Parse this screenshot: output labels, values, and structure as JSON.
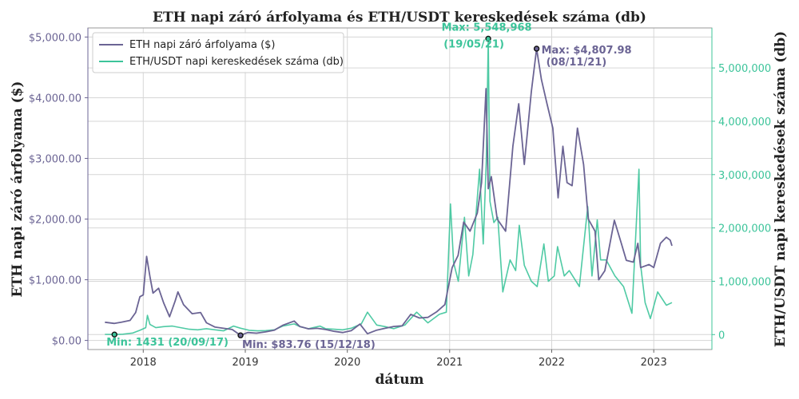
{
  "chart_data": {
    "type": "line",
    "title": "ETH napi záró árfolyama és ETH/USDT kereskedések száma (db)",
    "xlabel": "dátum",
    "ylabel_left": "ETH napi záró árfolyama ($)",
    "ylabel_right": "ETH/USDT napi kereskedések száma (db)",
    "colors": {
      "eth": "#6b6494",
      "trades": "#3cc49a"
    },
    "ylim_left": [
      -150,
      5150
    ],
    "ylim_right": [
      -280000,
      5750000
    ],
    "xlim": [
      "2017-06-17",
      "2023-07-28"
    ],
    "left_ticks": [
      {
        "value": 0,
        "label": "$0.00"
      },
      {
        "value": 1000,
        "label": "$1,000.00"
      },
      {
        "value": 2000,
        "label": "$2,000.00"
      },
      {
        "value": 3000,
        "label": "$3,000.00"
      },
      {
        "value": 4000,
        "label": "$4,000.00"
      },
      {
        "value": 5000,
        "label": "$5,000.00"
      }
    ],
    "right_ticks": [
      {
        "value": 0,
        "label": "0"
      },
      {
        "value": 1000000,
        "label": "1,000,000"
      },
      {
        "value": 2000000,
        "label": "2,000,000"
      },
      {
        "value": 3000000,
        "label": "3,000,000"
      },
      {
        "value": 4000000,
        "label": "4,000,000"
      },
      {
        "value": 5000000,
        "label": "5,000,000"
      }
    ],
    "x_ticks": [
      {
        "date": "2018-01-01",
        "label": "2018"
      },
      {
        "date": "2019-01-01",
        "label": "2019"
      },
      {
        "date": "2020-01-01",
        "label": "2020"
      },
      {
        "date": "2021-01-01",
        "label": "2021"
      },
      {
        "date": "2022-01-01",
        "label": "2022"
      },
      {
        "date": "2023-01-01",
        "label": "2023"
      }
    ],
    "legend_position": "top-left",
    "grid": true,
    "series": [
      {
        "key": "eth",
        "name": "ETH napi záró árfolyama ($)",
        "axis": "left",
        "points": [
          [
            "2017-08-17",
            300
          ],
          [
            "2017-09-20",
            280
          ],
          [
            "2017-10-15",
            300
          ],
          [
            "2017-11-15",
            330
          ],
          [
            "2017-12-05",
            460
          ],
          [
            "2017-12-20",
            720
          ],
          [
            "2018-01-01",
            750
          ],
          [
            "2018-01-13",
            1385
          ],
          [
            "2018-01-25",
            1050
          ],
          [
            "2018-02-05",
            780
          ],
          [
            "2018-02-25",
            860
          ],
          [
            "2018-03-15",
            620
          ],
          [
            "2018-04-05",
            390
          ],
          [
            "2018-04-25",
            650
          ],
          [
            "2018-05-05",
            800
          ],
          [
            "2018-05-25",
            590
          ],
          [
            "2018-06-25",
            440
          ],
          [
            "2018-07-25",
            460
          ],
          [
            "2018-08-15",
            290
          ],
          [
            "2018-09-15",
            220
          ],
          [
            "2018-10-15",
            200
          ],
          [
            "2018-11-15",
            180
          ],
          [
            "2018-12-15",
            83.76
          ],
          [
            "2019-01-10",
            130
          ],
          [
            "2019-02-10",
            120
          ],
          [
            "2019-03-15",
            140
          ],
          [
            "2019-04-15",
            170
          ],
          [
            "2019-05-15",
            250
          ],
          [
            "2019-06-25",
            320
          ],
          [
            "2019-07-15",
            230
          ],
          [
            "2019-08-15",
            190
          ],
          [
            "2019-09-15",
            200
          ],
          [
            "2019-10-15",
            180
          ],
          [
            "2019-11-15",
            150
          ],
          [
            "2019-12-15",
            130
          ],
          [
            "2020-01-15",
            160
          ],
          [
            "2020-02-15",
            270
          ],
          [
            "2020-03-13",
            110
          ],
          [
            "2020-04-15",
            170
          ],
          [
            "2020-05-15",
            200
          ],
          [
            "2020-06-15",
            230
          ],
          [
            "2020-07-15",
            240
          ],
          [
            "2020-08-15",
            430
          ],
          [
            "2020-09-15",
            370
          ],
          [
            "2020-10-15",
            380
          ],
          [
            "2020-11-15",
            470
          ],
          [
            "2020-12-15",
            590
          ],
          [
            "2021-01-10",
            1200
          ],
          [
            "2021-01-31",
            1400
          ],
          [
            "2021-02-20",
            1950
          ],
          [
            "2021-03-15",
            1800
          ],
          [
            "2021-04-10",
            2100
          ],
          [
            "2021-04-25",
            2600
          ],
          [
            "2021-05-11",
            4150
          ],
          [
            "2021-05-19",
            2500
          ],
          [
            "2021-05-30",
            2700
          ],
          [
            "2021-06-20",
            2000
          ],
          [
            "2021-07-20",
            1800
          ],
          [
            "2021-08-15",
            3200
          ],
          [
            "2021-09-05",
            3900
          ],
          [
            "2021-09-25",
            2900
          ],
          [
            "2021-10-20",
            4100
          ],
          [
            "2021-11-08",
            4807.98
          ],
          [
            "2021-11-25",
            4300
          ],
          [
            "2021-12-15",
            3900
          ],
          [
            "2022-01-05",
            3500
          ],
          [
            "2022-01-24",
            2350
          ],
          [
            "2022-02-10",
            3200
          ],
          [
            "2022-02-25",
            2600
          ],
          [
            "2022-03-15",
            2550
          ],
          [
            "2022-04-03",
            3500
          ],
          [
            "2022-04-25",
            2900
          ],
          [
            "2022-05-12",
            2000
          ],
          [
            "2022-06-05",
            1800
          ],
          [
            "2022-06-18",
            1000
          ],
          [
            "2022-07-10",
            1150
          ],
          [
            "2022-08-13",
            1980
          ],
          [
            "2022-09-07",
            1600
          ],
          [
            "2022-09-25",
            1320
          ],
          [
            "2022-10-20",
            1290
          ],
          [
            "2022-11-05",
            1600
          ],
          [
            "2022-11-15",
            1200
          ],
          [
            "2022-12-15",
            1250
          ],
          [
            "2023-01-01",
            1200
          ],
          [
            "2023-01-25",
            1600
          ],
          [
            "2023-02-15",
            1700
          ],
          [
            "2023-03-01",
            1650
          ],
          [
            "2023-03-07",
            1560
          ]
        ]
      },
      {
        "key": "trades",
        "name": "ETH/USDT napi kereskedések száma (db)",
        "axis": "right",
        "points": [
          [
            "2017-08-17",
            5000
          ],
          [
            "2017-09-20",
            1431
          ],
          [
            "2017-10-20",
            8000
          ],
          [
            "2017-11-25",
            30000
          ],
          [
            "2017-12-20",
            80000
          ],
          [
            "2018-01-10",
            130000
          ],
          [
            "2018-01-16",
            360000
          ],
          [
            "2018-01-25",
            190000
          ],
          [
            "2018-02-15",
            130000
          ],
          [
            "2018-03-15",
            150000
          ],
          [
            "2018-04-15",
            160000
          ],
          [
            "2018-05-15",
            130000
          ],
          [
            "2018-06-15",
            100000
          ],
          [
            "2018-07-15",
            90000
          ],
          [
            "2018-08-15",
            110000
          ],
          [
            "2018-09-15",
            90000
          ],
          [
            "2018-10-15",
            70000
          ],
          [
            "2018-11-20",
            160000
          ],
          [
            "2018-12-15",
            120000
          ],
          [
            "2019-01-15",
            80000
          ],
          [
            "2019-02-15",
            70000
          ],
          [
            "2019-03-15",
            75000
          ],
          [
            "2019-04-15",
            90000
          ],
          [
            "2019-05-15",
            160000
          ],
          [
            "2019-06-25",
            200000
          ],
          [
            "2019-07-15",
            150000
          ],
          [
            "2019-08-15",
            110000
          ],
          [
            "2019-09-25",
            160000
          ],
          [
            "2019-10-15",
            110000
          ],
          [
            "2019-11-15",
            100000
          ],
          [
            "2019-12-15",
            90000
          ],
          [
            "2020-01-15",
            120000
          ],
          [
            "2020-02-20",
            200000
          ],
          [
            "2020-03-13",
            420000
          ],
          [
            "2020-04-15",
            180000
          ],
          [
            "2020-05-15",
            150000
          ],
          [
            "2020-06-15",
            110000
          ],
          [
            "2020-07-25",
            180000
          ],
          [
            "2020-08-15",
            300000
          ],
          [
            "2020-09-05",
            420000
          ],
          [
            "2020-10-15",
            220000
          ],
          [
            "2020-11-25",
            380000
          ],
          [
            "2020-12-20",
            420000
          ],
          [
            "2021-01-04",
            2450000
          ],
          [
            "2021-01-15",
            1350000
          ],
          [
            "2021-02-01",
            1000000
          ],
          [
            "2021-02-23",
            2200000
          ],
          [
            "2021-03-10",
            1100000
          ],
          [
            "2021-03-25",
            1500000
          ],
          [
            "2021-04-18",
            3100000
          ],
          [
            "2021-05-01",
            1700000
          ],
          [
            "2021-05-12",
            3250000
          ],
          [
            "2021-05-19",
            5548968
          ],
          [
            "2021-05-25",
            2500000
          ],
          [
            "2021-06-08",
            2100000
          ],
          [
            "2021-06-22",
            2200000
          ],
          [
            "2021-07-10",
            800000
          ],
          [
            "2021-08-05",
            1400000
          ],
          [
            "2021-08-25",
            1200000
          ],
          [
            "2021-09-07",
            2050000
          ],
          [
            "2021-09-25",
            1300000
          ],
          [
            "2021-10-20",
            1000000
          ],
          [
            "2021-11-10",
            900000
          ],
          [
            "2021-12-04",
            1700000
          ],
          [
            "2021-12-20",
            1000000
          ],
          [
            "2022-01-10",
            1100000
          ],
          [
            "2022-01-22",
            1650000
          ],
          [
            "2022-02-15",
            1100000
          ],
          [
            "2022-03-05",
            1200000
          ],
          [
            "2022-04-10",
            900000
          ],
          [
            "2022-05-10",
            2400000
          ],
          [
            "2022-05-25",
            1100000
          ],
          [
            "2022-06-13",
            2150000
          ],
          [
            "2022-06-25",
            1400000
          ],
          [
            "2022-07-15",
            1400000
          ],
          [
            "2022-08-15",
            1100000
          ],
          [
            "2022-09-15",
            900000
          ],
          [
            "2022-10-15",
            400000
          ],
          [
            "2022-11-09",
            3100000
          ],
          [
            "2022-11-15",
            1300000
          ],
          [
            "2022-12-01",
            600000
          ],
          [
            "2022-12-20",
            300000
          ],
          [
            "2023-01-15",
            800000
          ],
          [
            "2023-02-15",
            550000
          ],
          [
            "2023-03-07",
            600000
          ]
        ]
      }
    ],
    "annotations": [
      {
        "series": "trades",
        "date": "2021-05-19",
        "value": 5548968,
        "line1": "Max: 5,548,968",
        "line2": "(19/05/21)"
      },
      {
        "series": "eth",
        "date": "2021-11-08",
        "value": 4807.98,
        "line1": "Max: $4,807.98",
        "line2": "(08/11/21)"
      },
      {
        "series": "trades",
        "date": "2017-09-20",
        "value": 1431,
        "line1": "Min: 1431 (20/09/17)"
      },
      {
        "series": "eth",
        "date": "2018-12-15",
        "value": 83.76,
        "line1": "Min: $83.76 (15/12/18)"
      }
    ]
  }
}
